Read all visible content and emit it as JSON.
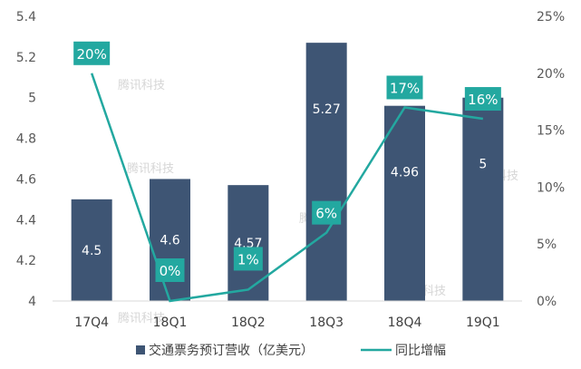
{
  "watermark": "腾讯科技",
  "colors": {
    "bar": "#3e5574",
    "line": "#23a8a0",
    "label_box": "#23a8a0"
  },
  "chart_data": {
    "type": "bar",
    "categories": [
      "17Q4",
      "18Q1",
      "18Q2",
      "18Q3",
      "18Q4",
      "19Q1"
    ],
    "series": [
      {
        "name": "交通票务预订营收（亿美元）",
        "type": "bar",
        "axis": "left",
        "values": [
          4.5,
          4.6,
          4.57,
          5.27,
          4.96,
          5
        ],
        "labels": [
          "4.5",
          "4.6",
          "4.57",
          "5.27",
          "4.96",
          "5"
        ]
      },
      {
        "name": "同比增幅",
        "type": "line",
        "axis": "right",
        "values": [
          20,
          0,
          1,
          6,
          17,
          16
        ],
        "labels": [
          "20%",
          "0%",
          "1%",
          "6%",
          "17%",
          "16%"
        ]
      }
    ],
    "y_left": {
      "min": 4,
      "max": 5.4,
      "ticks": [
        "4",
        "4.2",
        "4.4",
        "4.6",
        "4.8",
        "5",
        "5.2",
        "5.4"
      ]
    },
    "y_right": {
      "min": 0,
      "max": 25,
      "ticks": [
        "0%",
        "5%",
        "10%",
        "15%",
        "20%",
        "25%"
      ]
    },
    "legend_position": "bottom",
    "grid": false
  }
}
